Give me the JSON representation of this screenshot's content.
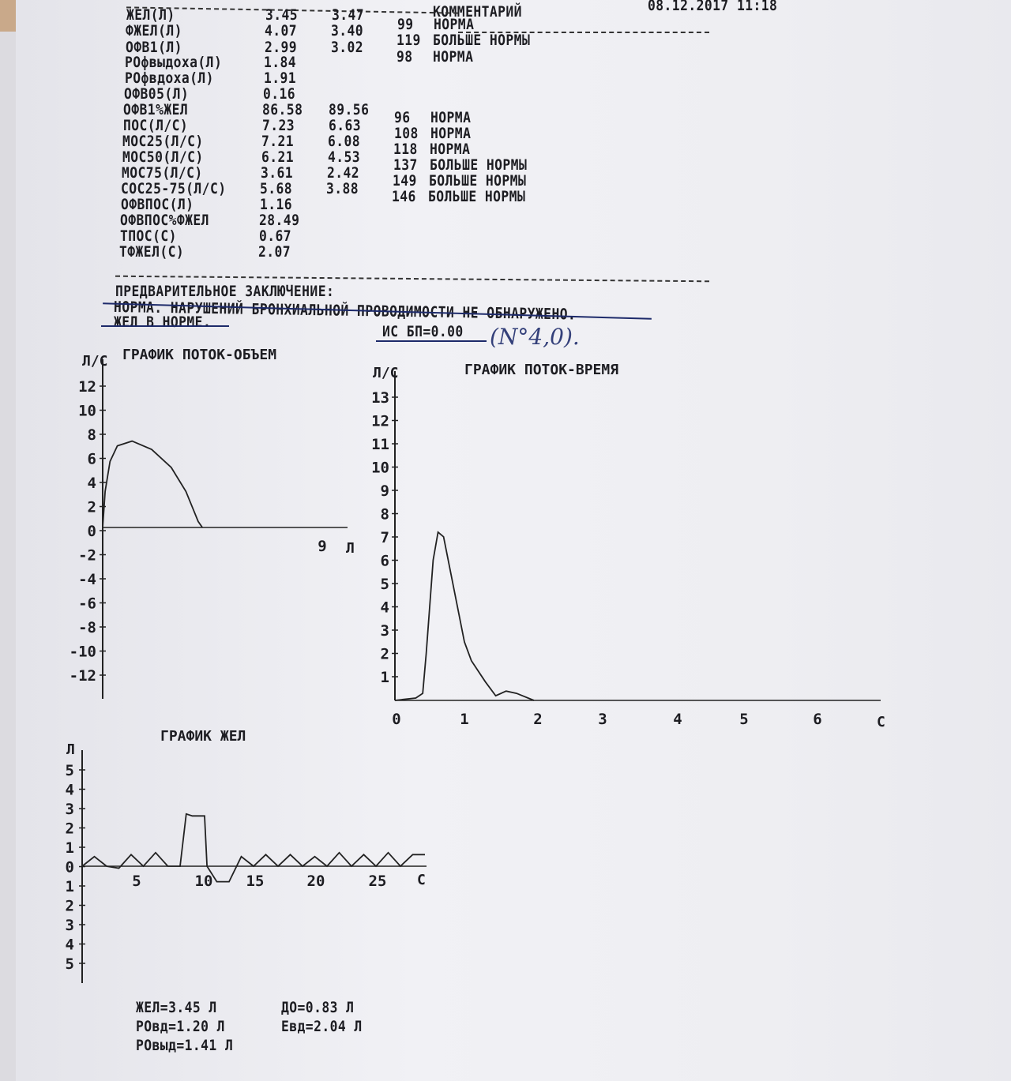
{
  "header": {
    "datetime": "08.12.2017 11:18",
    "comment_header": "КОММЕНТАРИЙ"
  },
  "params": [
    {
      "name": "ЖЕЛ(Л)",
      "value": "3.45",
      "pred": "3.47",
      "pct": "99",
      "comment": "НОРМА"
    },
    {
      "name": "ФЖЕЛ(Л)",
      "value": "4.07",
      "pred": "3.40",
      "pct": "119",
      "comment": "БОЛЬШЕ НОРМЫ"
    },
    {
      "name": "ОФВ1(Л)",
      "value": "2.99",
      "pred": "3.02",
      "pct": "98",
      "comment": "НОРМА"
    },
    {
      "name": "РОфвыдоха(Л)",
      "value": "1.84",
      "pred": "",
      "pct": "",
      "comment": ""
    },
    {
      "name": "РОфвдоха(Л)",
      "value": "1.91",
      "pred": "",
      "pct": "",
      "comment": ""
    },
    {
      "name": "ОФВ05(Л)",
      "value": "0.16",
      "pred": "",
      "pct": "",
      "comment": ""
    },
    {
      "name": "ОФВ1%ЖЕЛ",
      "value": "86.58",
      "pred": "89.56",
      "pct": "96",
      "comment": "НОРМА"
    },
    {
      "name": "ПОС(Л/С)",
      "value": "7.23",
      "pred": "6.63",
      "pct": "108",
      "comment": "НОРМА"
    },
    {
      "name": "МОС25(Л/С)",
      "value": "7.21",
      "pred": "6.08",
      "pct": "118",
      "comment": "НОРМА"
    },
    {
      "name": "МОС50(Л/С)",
      "value": "6.21",
      "pred": "4.53",
      "pct": "137",
      "comment": "БОЛЬШЕ НОРМЫ"
    },
    {
      "name": "МОС75(Л/С)",
      "value": "3.61",
      "pred": "2.42",
      "pct": "149",
      "comment": "БОЛЬШЕ НОРМЫ"
    },
    {
      "name": "СОС25-75(Л/С)",
      "value": "5.68",
      "pred": "3.88",
      "pct": "146",
      "comment": "БОЛЬШЕ НОРМЫ"
    },
    {
      "name": "ОФВПОС(Л)",
      "value": "1.16",
      "pred": "",
      "pct": "",
      "comment": ""
    },
    {
      "name": "ОФВПОС%ФЖЕЛ",
      "value": "28.49",
      "pred": "",
      "pct": "",
      "comment": ""
    },
    {
      "name": "ТПОС(С)",
      "value": "0.67",
      "pred": "",
      "pct": "",
      "comment": ""
    },
    {
      "name": "ТФЖЕЛ(С)",
      "value": "2.07",
      "pred": "",
      "pct": "",
      "comment": ""
    }
  ],
  "conclusion": {
    "heading": "ПРЕДВАРИТЕЛЬНОЕ ЗАКЛЮЧЕНИЕ:",
    "line1": "НОРМА. НАРУШЕНИЙ БРОНХИАЛЬНОЙ ПРОВОДИМОСТИ НЕ ОБНАРУЖЕНО.",
    "line2": "ЖЕЛ В НОРМЕ.",
    "index": "ИС БП=0.00",
    "handwritten": "(N°4,0)."
  },
  "summary": {
    "vc": "ЖЕЛ=3.45 Л",
    "tv": "ДО=0.83 Л",
    "irv": "РОвд=1.20 Л",
    "ic": "Евд=2.04 Л",
    "erv": "РОвыд=1.41 Л"
  },
  "chart_data": [
    {
      "type": "line",
      "title": "ГРАФИК ПОТОК-ОБЪЕМ",
      "ylabel": "Л/С",
      "xlabel": "Л",
      "yticks": [
        "12",
        "10",
        "8",
        "6",
        "4",
        "2",
        "0",
        "-2",
        "-4",
        "-6",
        "-8",
        "-10",
        "-12"
      ],
      "xticks": [
        "9"
      ],
      "ylim": [
        -13,
        13
      ],
      "xlim": [
        0,
        10
      ],
      "x": [
        0,
        0.1,
        0.3,
        0.6,
        1.2,
        2.0,
        2.8,
        3.4,
        3.7,
        3.9,
        4.07
      ],
      "y": [
        0,
        3,
        5.5,
        6.8,
        7.2,
        6.5,
        5,
        3,
        1.5,
        0.5,
        0
      ]
    },
    {
      "type": "line",
      "title": "ГРАФИК ПОТОК-ВРЕМЯ",
      "ylabel": "Л/С",
      "xlabel": "С",
      "yticks": [
        "13",
        "12",
        "11",
        "10",
        "9",
        "8",
        "7",
        "6",
        "5",
        "4",
        "3",
        "2",
        "1"
      ],
      "xticks": [
        "0",
        "1",
        "2",
        "3",
        "4",
        "5",
        "6"
      ],
      "ylim": [
        0,
        14
      ],
      "xlim": [
        0,
        6.9
      ],
      "x": [
        0,
        0.3,
        0.4,
        0.45,
        0.55,
        0.62,
        0.7,
        0.8,
        0.9,
        1.0,
        1.1,
        1.3,
        1.45,
        1.6,
        1.75,
        2.0
      ],
      "y": [
        0,
        0.1,
        0.3,
        2,
        6,
        7.2,
        7,
        5.5,
        4,
        2.5,
        1.7,
        0.8,
        0.2,
        0.4,
        0.3,
        0
      ]
    },
    {
      "type": "line",
      "title": "ГРАФИК ЖЕЛ",
      "ylabel": "Л",
      "xlabel": "С",
      "yticks": [
        "5",
        "4",
        "3",
        "2",
        "1",
        "0",
        "1",
        "2",
        "3",
        "4",
        "5"
      ],
      "xticks": [
        "5",
        "10",
        "15",
        "20",
        "25"
      ],
      "ylim": [
        -5,
        5
      ],
      "xlim": [
        0,
        28
      ],
      "x": [
        0,
        1,
        2,
        3,
        4,
        5,
        6,
        7,
        8,
        8.5,
        9,
        10,
        10.2,
        11,
        12,
        13,
        14,
        15,
        16,
        17,
        18,
        19,
        20,
        21,
        22,
        23,
        24,
        25,
        26,
        27,
        28
      ],
      "y": [
        0,
        0.5,
        0,
        -0.1,
        0.6,
        0,
        0.7,
        0,
        0,
        2.7,
        2.6,
        2.6,
        0,
        -0.8,
        -0.8,
        0.5,
        0,
        0.6,
        0,
        0.6,
        0,
        0.5,
        0,
        0.7,
        0,
        0.6,
        0,
        0.7,
        0,
        0.6,
        0.6
      ]
    }
  ]
}
